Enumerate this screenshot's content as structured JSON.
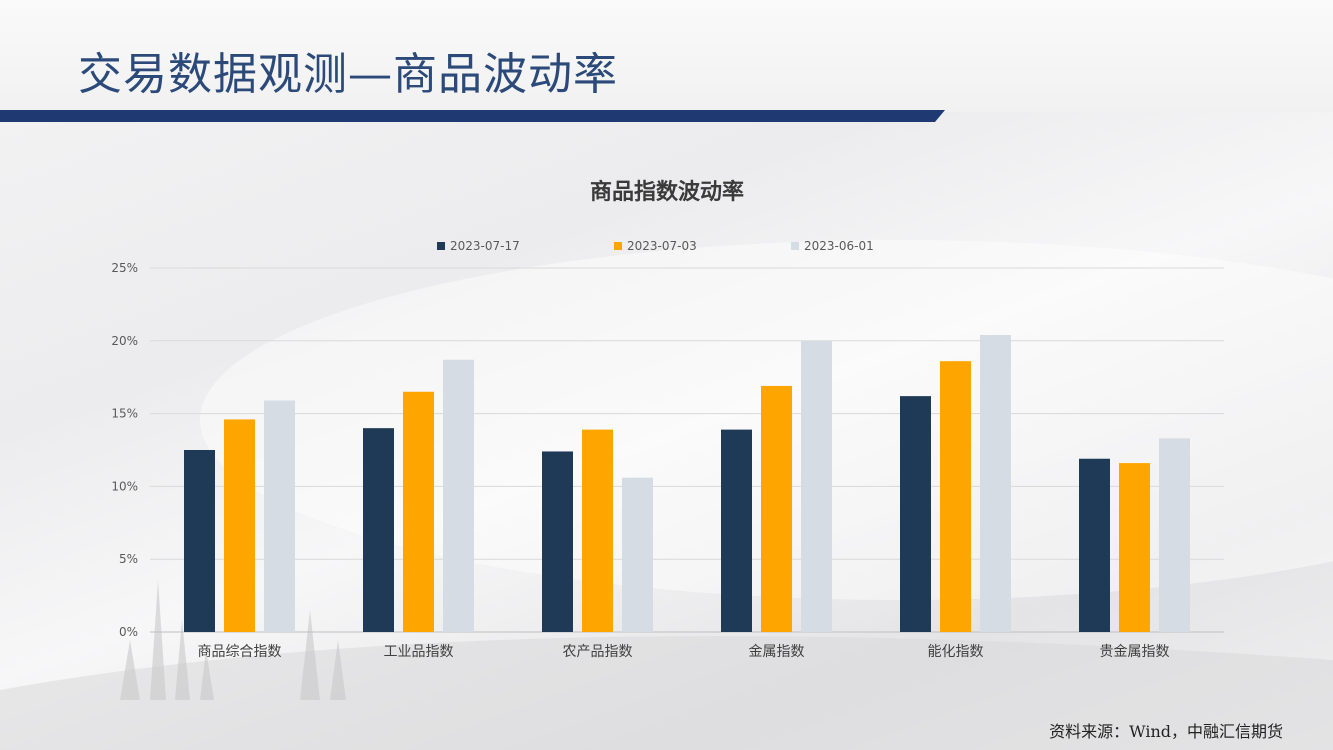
{
  "slide": {
    "title": "交易数据观测—商品波动率",
    "source": "资料来源：Wind，中融汇信期货"
  },
  "colors": {
    "title": "#2b4a7a",
    "title_bar": "#1f3a73",
    "series": [
      "#1e3a56",
      "#ffa500",
      "#d6dce4"
    ]
  },
  "chart_data": {
    "type": "bar",
    "title": "商品指数波动率",
    "categories": [
      "商品综合指数",
      "工业品指数",
      "农产品指数",
      "金属指数",
      "能化指数",
      "贵金属指数"
    ],
    "series": [
      {
        "name": "2023-07-17",
        "color": "#1e3a56",
        "values": [
          12.5,
          14.0,
          12.4,
          13.9,
          16.2,
          11.9
        ]
      },
      {
        "name": "2023-07-03",
        "color": "#ffa500",
        "values": [
          14.6,
          16.5,
          13.9,
          16.9,
          18.6,
          11.6
        ]
      },
      {
        "name": "2023-06-01",
        "color": "#d6dce4",
        "values": [
          15.9,
          18.7,
          10.6,
          20.0,
          20.4,
          13.3
        ]
      }
    ],
    "ylim": [
      0,
      25
    ],
    "yticks": [
      "0%",
      "5%",
      "10%",
      "15%",
      "20%",
      "25%"
    ],
    "ytick_values": [
      0,
      5,
      10,
      15,
      20,
      25
    ],
    "grid": true,
    "legend_position": "top"
  }
}
